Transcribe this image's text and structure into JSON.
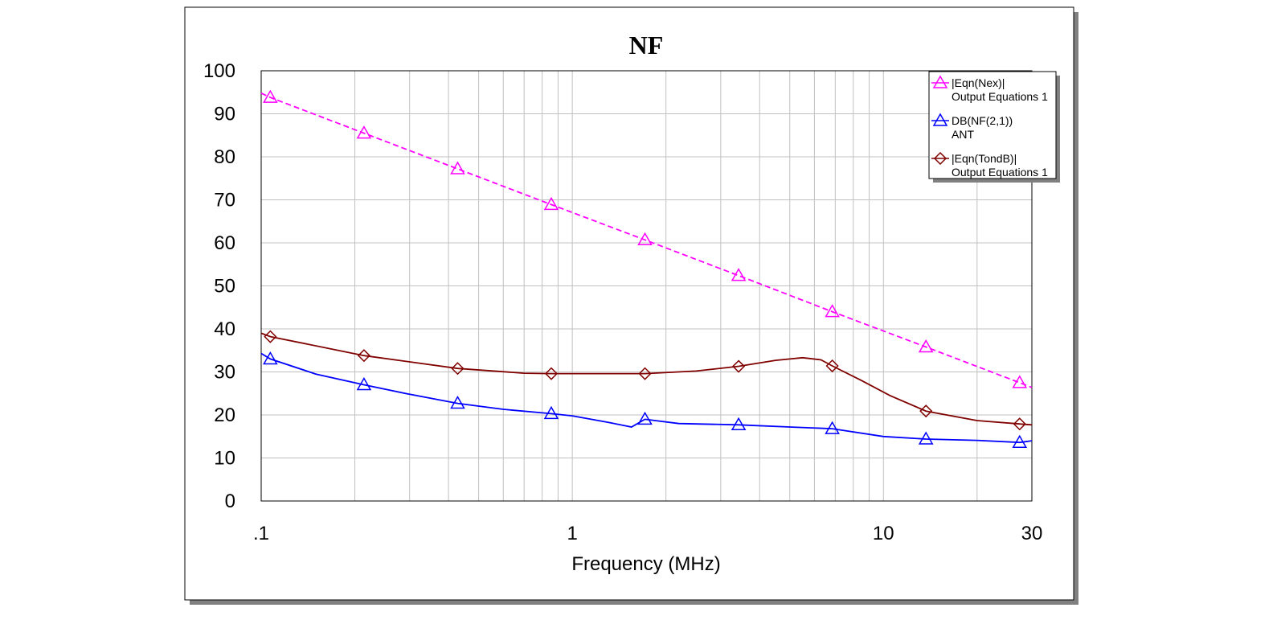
{
  "chart_data": {
    "type": "line",
    "title": "NF",
    "xlabel": "Frequency (MHz)",
    "ylabel": "",
    "xscale": "log",
    "xlim": [
      0.1,
      30
    ],
    "ylim": [
      0,
      100
    ],
    "grid": true,
    "legend_position": "top-right",
    "x_tick_labels": [
      ".1",
      "1",
      "10",
      "30"
    ],
    "x_tick_values": [
      0.1,
      1,
      10,
      30
    ],
    "y_tick_labels": [
      "0",
      "10",
      "20",
      "30",
      "40",
      "50",
      "60",
      "70",
      "80",
      "90",
      "100"
    ],
    "y_tick_values": [
      0,
      10,
      20,
      30,
      40,
      50,
      60,
      70,
      80,
      90,
      100
    ],
    "series": [
      {
        "name": "|Eqn(Nex)|",
        "source": "Output Equations 1",
        "color": "#ff00ff",
        "style": "dashed",
        "marker": "triangle",
        "x": [
          0.1,
          0.107,
          0.214,
          0.428,
          0.856,
          1.712,
          3.424,
          6.848,
          13.7,
          27.4,
          30
        ],
        "y": [
          94.8,
          93.8,
          85.5,
          77.2,
          68.9,
          60.7,
          52.4,
          44.0,
          35.8,
          27.5,
          26.4
        ],
        "marker_x": [
          0.107,
          0.214,
          0.428,
          0.856,
          1.712,
          3.424,
          6.848,
          13.7,
          27.4
        ]
      },
      {
        "name": "DB(NF(2,1))",
        "source": "ANT",
        "color": "#0000ff",
        "style": "solid",
        "marker": "triangle",
        "x": [
          0.1,
          0.107,
          0.15,
          0.214,
          0.3,
          0.428,
          0.6,
          0.856,
          1.0,
          1.3,
          1.55,
          1.712,
          2.2,
          3.424,
          5.0,
          6.848,
          10.0,
          13.7,
          20.0,
          27.4,
          30
        ],
        "y": [
          34.3,
          33.0,
          29.5,
          27.0,
          24.8,
          22.7,
          21.3,
          20.3,
          19.8,
          18.3,
          17.2,
          19.0,
          18.0,
          17.7,
          17.2,
          16.8,
          15.0,
          14.4,
          14.1,
          13.6,
          14.0
        ],
        "marker_x": [
          0.107,
          0.214,
          0.428,
          0.856,
          1.712,
          3.424,
          6.848,
          13.7,
          27.4
        ]
      },
      {
        "name": "|Eqn(TondB)|",
        "source": "Output Equations 1",
        "color": "#800000",
        "style": "solid",
        "marker": "diamond",
        "x": [
          0.1,
          0.107,
          0.214,
          0.428,
          0.7,
          0.856,
          1.712,
          2.5,
          3.424,
          4.5,
          5.5,
          6.3,
          6.848,
          8.5,
          10.5,
          13.7,
          20.0,
          27.4,
          30
        ],
        "y": [
          39.0,
          38.2,
          33.8,
          30.8,
          29.7,
          29.6,
          29.6,
          30.2,
          31.3,
          32.7,
          33.3,
          32.8,
          31.4,
          28.0,
          24.5,
          20.9,
          18.7,
          17.9,
          17.7
        ],
        "marker_x": [
          0.107,
          0.214,
          0.428,
          0.856,
          1.712,
          3.424,
          6.848,
          13.7,
          27.4
        ]
      }
    ]
  }
}
